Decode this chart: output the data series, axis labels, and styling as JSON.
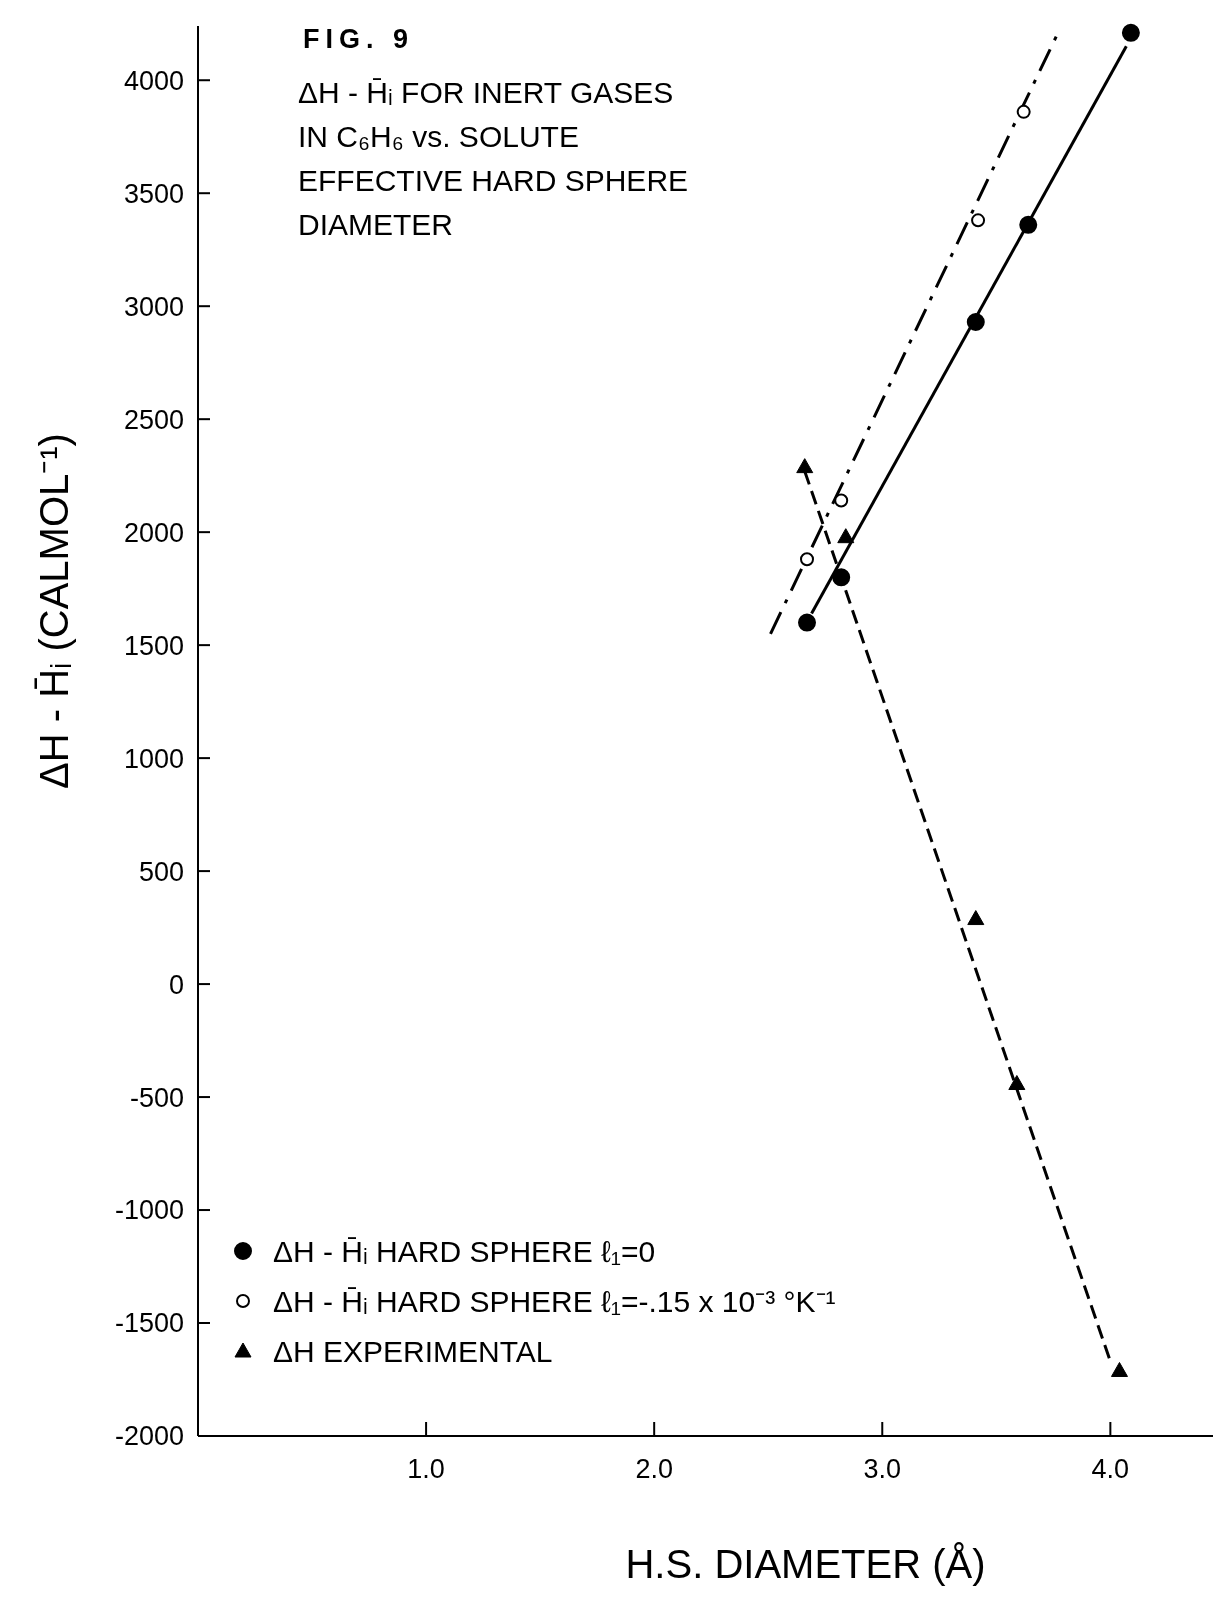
{
  "chart_data": {
    "type": "scatter",
    "title": "FIG. 9",
    "subtitle": "ΔH - H̄ᵢ FOR INERT GASES IN C₆H₆ vs. SOLUTE EFFECTIVE HARD SPHERE DIAMETER",
    "xlabel": "H.S. DIAMETER (Å)",
    "ylabel": "ΔH - H̄ᵢ (CALMOL⁻¹)",
    "xlim": [
      0,
      4.45
    ],
    "ylim": [
      -2000,
      4240
    ],
    "xticks": [
      {
        "value": 1,
        "label": "1.0"
      },
      {
        "value": 2,
        "label": "2.0"
      },
      {
        "value": 3,
        "label": "3.0"
      },
      {
        "value": 4,
        "label": "4.0"
      }
    ],
    "yticks": [
      -2000,
      -1500,
      -1000,
      -500,
      0,
      500,
      1000,
      1500,
      2000,
      2500,
      3000,
      3500,
      4000
    ],
    "grid": false,
    "legend": "bottom left",
    "series": [
      {
        "name": "ΔH - H̄ᵢ HARD SPHERE ℓ₁=0",
        "marker": "circle",
        "color": "#000000",
        "x": [
          2.67,
          2.82,
          3.41,
          3.64,
          4.09
        ],
        "values": [
          1600,
          1800,
          2930,
          3360,
          4210
        ]
      },
      {
        "name": "ΔH - H̄ᵢ HARD SPHERE ℓ₁=-.15 x 10⁻³ °K⁻¹",
        "marker": "circle-open",
        "color": "#000000",
        "x": [
          2.67,
          2.82,
          3.42,
          3.62
        ],
        "values": [
          1880,
          2140,
          3380,
          3860
        ]
      },
      {
        "name": "ΔH EXPERIMENTAL",
        "marker": "triangle",
        "color": "#000000",
        "x": [
          2.66,
          2.84,
          3.41,
          3.59,
          4.04
        ],
        "values": [
          2290,
          1980,
          290,
          -440,
          -1710
        ]
      },
      {
        "type": "line",
        "marker": "none",
        "line_style": "solid",
        "color": "#000000",
        "x": [
          2.69,
          4.07
        ],
        "values": [
          1640,
          4150
        ]
      },
      {
        "type": "line",
        "marker": "none",
        "line_style": "dashdot",
        "color": "#000000",
        "x": [
          2.51,
          3.78
        ],
        "values": [
          1550,
          4230
        ]
      },
      {
        "type": "line",
        "marker": "none",
        "line_style": "dashed",
        "color": "#000000",
        "x": [
          2.66,
          4.0
        ],
        "values": [
          2270,
          -1670
        ]
      }
    ]
  }
}
